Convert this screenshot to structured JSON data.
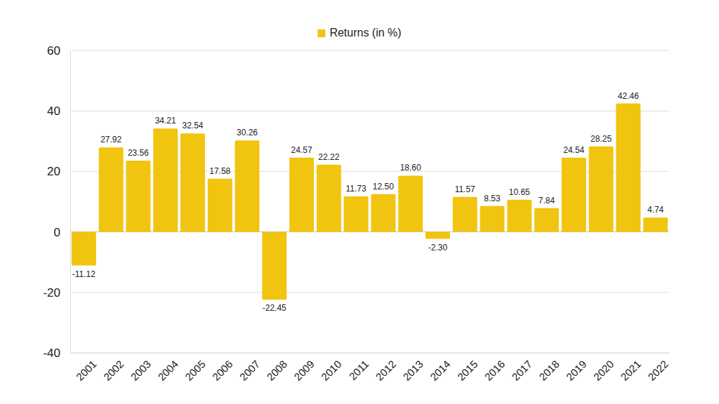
{
  "chart_data": {
    "type": "bar",
    "categories": [
      "2001",
      "2002",
      "2003",
      "2004",
      "2005",
      "2006",
      "2007",
      "2008",
      "2009",
      "2010",
      "2011",
      "2012",
      "2013",
      "2014",
      "2015",
      "2016",
      "2017",
      "2018",
      "2019",
      "2020",
      "2021",
      "2022"
    ],
    "series": [
      {
        "name": "Returns (in %)",
        "color": "#f1c40f",
        "values": [
          -11.12,
          27.92,
          23.56,
          34.21,
          32.54,
          17.58,
          30.26,
          -22.45,
          24.57,
          22.22,
          11.73,
          12.5,
          18.6,
          -2.3,
          11.57,
          8.53,
          10.65,
          7.84,
          24.54,
          28.25,
          42.46,
          4.74
        ],
        "value_labels": [
          "-11.12",
          "27.92",
          "23.56",
          "34.21",
          "32.54",
          "17.58",
          "30.26",
          "-22.45",
          "24.57",
          "22.22",
          "11.73",
          "12.50",
          "18.60",
          "-2.30",
          "11.57",
          "8.53",
          "10.65",
          "7.84",
          "24.54",
          "28.25",
          "42.46",
          "4.74"
        ]
      }
    ],
    "ylim": [
      -40,
      60
    ],
    "yticks": [
      -40,
      -20,
      0,
      20,
      40,
      60
    ],
    "grid": true,
    "legend": "top",
    "data_labels": true
  }
}
